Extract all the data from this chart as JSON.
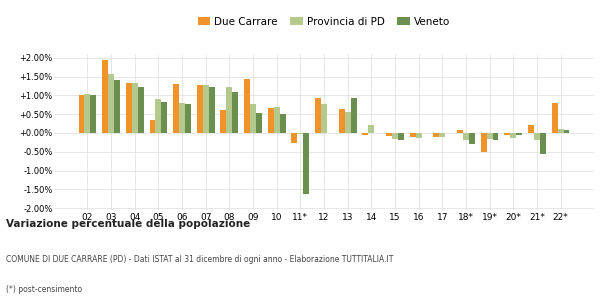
{
  "categories": [
    "02",
    "03",
    "04",
    "05",
    "06",
    "07",
    "08",
    "09",
    "10",
    "11*",
    "12",
    "13",
    "14",
    "15",
    "16",
    "17",
    "18*",
    "19*",
    "20*",
    "21*",
    "22*"
  ],
  "due_carrare": [
    1.02,
    1.95,
    1.33,
    0.35,
    1.3,
    1.27,
    0.62,
    1.43,
    0.67,
    -0.28,
    0.93,
    0.65,
    -0.06,
    -0.07,
    -0.1,
    -0.1,
    0.08,
    -0.52,
    -0.05,
    0.22,
    0.8
  ],
  "provincia_pd": [
    1.03,
    1.58,
    1.34,
    0.9,
    0.8,
    1.28,
    1.22,
    0.78,
    0.68,
    -0.03,
    0.76,
    0.57,
    0.22,
    -0.15,
    -0.13,
    -0.12,
    -0.2,
    -0.15,
    -0.13,
    -0.2,
    0.1
  ],
  "veneto": [
    1.02,
    1.42,
    1.22,
    0.83,
    0.77,
    1.22,
    1.1,
    0.53,
    0.5,
    -1.63,
    0.0,
    0.93,
    0.0,
    -0.2,
    0.0,
    0.0,
    -0.3,
    -0.2,
    -0.05,
    -0.55,
    0.08
  ],
  "color_due_carrare": "#f0932b",
  "color_provincia": "#b5c98e",
  "color_veneto": "#6b8f4e",
  "legend_labels": [
    "Due Carrare",
    "Provincia di PD",
    "Veneto"
  ],
  "title": "Variazione percentuale della popolazione",
  "subtitle": "COMUNE DI DUE CARRARE (PD) - Dati ISTAT al 31 dicembre di ogni anno - Elaborazione TUTTITALIA.IT",
  "footnote": "(*) post-censimento",
  "ylim": [
    -2.0,
    2.0
  ],
  "yticks": [
    -2.0,
    -1.5,
    -1.0,
    -0.5,
    0.0,
    0.5,
    1.0,
    1.5,
    2.0
  ],
  "bg_color": "#ffffff",
  "grid_color": "#dddddd"
}
